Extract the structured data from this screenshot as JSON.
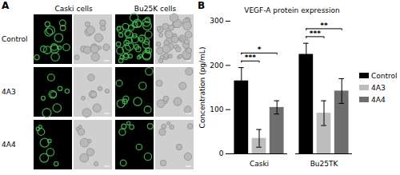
{
  "panel_a": {
    "label": "A",
    "columns": [
      "Caski cells",
      "Bu25K cells"
    ],
    "rows": [
      "Control",
      "4A3",
      "4A4"
    ]
  },
  "panel_b_label": "B",
  "chart_data": {
    "type": "bar",
    "title": "VEGF-A protein expression",
    "y_label": "Concentration (pg/mL)",
    "categories": [
      "Caski",
      "Bu25TK"
    ],
    "series": [
      {
        "name": "Control",
        "color": "#000000",
        "values": [
          165,
          225
        ],
        "errors": [
          30,
          25
        ]
      },
      {
        "name": "4A3",
        "color": "#bdbdbd",
        "values": [
          35,
          92
        ],
        "errors": [
          20,
          28
        ]
      },
      {
        "name": "4A4",
        "color": "#6e6e6e",
        "values": [
          105,
          142
        ],
        "errors": [
          15,
          28
        ]
      }
    ],
    "ylim": [
      0,
      300
    ],
    "yticks": [
      0,
      100,
      200,
      300
    ],
    "grid": false,
    "legend": "right",
    "annotations": [
      {
        "category": "Caski",
        "from": "Control",
        "to": "4A3",
        "label": "***"
      },
      {
        "category": "Caski",
        "from": "Control",
        "to": "4A4",
        "label": "*"
      },
      {
        "category": "Bu25TK",
        "from": "Control",
        "to": "4A3",
        "label": "***"
      },
      {
        "category": "Bu25TK",
        "from": "Control",
        "to": "4A4",
        "label": "**"
      }
    ]
  }
}
